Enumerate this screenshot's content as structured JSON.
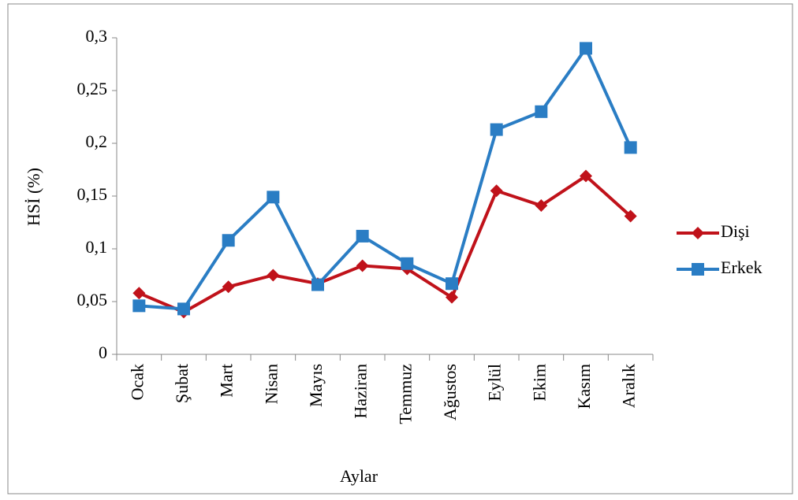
{
  "chart_data": {
    "type": "line",
    "x_label": "Aylar",
    "y_label": "HSİ (%)",
    "categories": [
      "Ocak",
      "Şubat",
      "Mart",
      "Nisan",
      "Mayıs",
      "Haziran",
      "Temmuz",
      "Ağustos",
      "Eylül",
      "Ekim",
      "Kasım",
      "Aralık"
    ],
    "series": [
      {
        "name": "Dişi",
        "color": "#c0121a",
        "marker": "diamond",
        "values": [
          0.058,
          0.04,
          0.064,
          0.075,
          0.067,
          0.084,
          0.081,
          0.054,
          0.155,
          0.141,
          0.169,
          0.131
        ]
      },
      {
        "name": "Erkek",
        "color": "#2a7dc4",
        "marker": "square",
        "values": [
          0.046,
          0.043,
          0.108,
          0.149,
          0.066,
          0.112,
          0.086,
          0.067,
          0.213,
          0.23,
          0.29,
          0.196
        ]
      }
    ],
    "ylim": [
      0,
      0.3
    ],
    "yticks": [
      0,
      {
        "value": 0.05,
        "label": "0,05"
      },
      {
        "value": 0.1,
        "label": "0,1"
      },
      {
        "value": 0.15,
        "label": "0,15"
      },
      {
        "value": 0.2,
        "label": "0,2"
      },
      {
        "value": 0.25,
        "label": "0,25"
      },
      {
        "value": 0.3,
        "label": "0,3"
      }
    ],
    "grid": false,
    "legend": "right"
  }
}
